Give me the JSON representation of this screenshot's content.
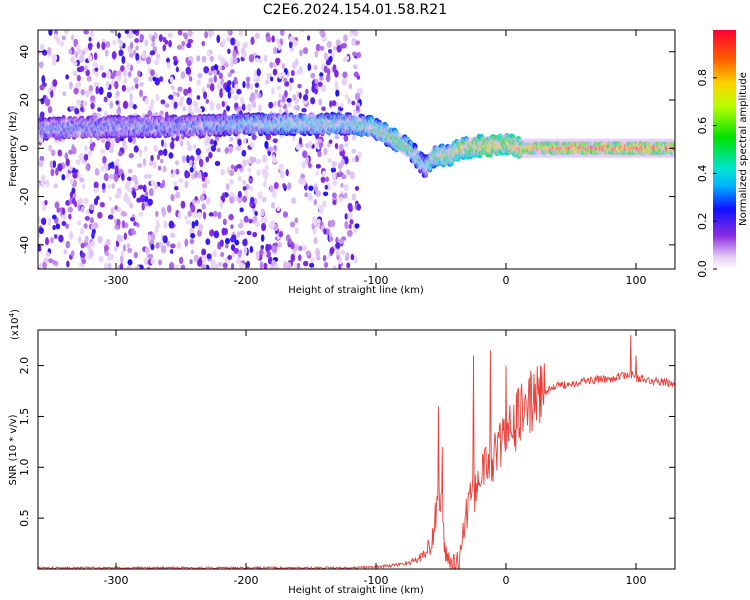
{
  "title": "C2E6.2024.154.01.58.R21",
  "chart_data": [
    {
      "type": "heatmap",
      "name": "spectrogram",
      "xlabel": "Height of straight line (km)",
      "ylabel": "Frequency (Hz)",
      "xlim": [
        -360,
        130
      ],
      "ylim": [
        -50,
        49
      ],
      "xticks": [
        -300,
        -200,
        -100,
        0,
        100
      ],
      "yticks": [
        -40,
        -20,
        0,
        20,
        40
      ],
      "colorbar": {
        "label": "Normalized spectral amplitude",
        "range": [
          0.0,
          1.0
        ],
        "ticks": [
          0.0,
          0.2,
          0.4,
          0.6,
          0.8
        ],
        "tick_labels": [
          "0.0",
          "0.2",
          "0.4",
          "0.6",
          "0.8"
        ]
      },
      "noise_region_x": [
        -360,
        -112
      ],
      "ridge": {
        "x": [
          -360,
          -300,
          -250,
          -200,
          -150,
          -120,
          -105,
          -90,
          -75,
          -62,
          -55,
          -45,
          -35,
          -20,
          -10,
          0,
          10,
          50,
          100,
          130
        ],
        "y": [
          8,
          9,
          9,
          10,
          10,
          10,
          9,
          5,
          0,
          -8,
          -3,
          -3,
          0,
          1,
          1,
          2,
          0,
          0,
          0,
          0
        ],
        "amp": [
          0.3,
          0.3,
          0.3,
          0.4,
          0.45,
          0.45,
          0.5,
          0.55,
          0.55,
          0.4,
          0.6,
          0.6,
          0.7,
          0.75,
          0.8,
          0.65,
          0.8,
          0.95,
          0.95,
          0.9
        ]
      }
    },
    {
      "type": "line",
      "name": "snr",
      "xlabel": "Height of straight line (km)",
      "ylabel": "SNR (10 * v/v)",
      "exponent_label": "(x10",
      "exponent": "4",
      "xlim": [
        -360,
        130
      ],
      "ylim": [
        0,
        2.35
      ],
      "xticks": [
        -300,
        -200,
        -100,
        0,
        100
      ],
      "yticks": [
        0.5,
        1.0,
        1.5,
        2.0
      ],
      "ytick_labels": [
        "0.5",
        "1.0",
        "1.5",
        "2.0"
      ],
      "color": "#e8403a",
      "profile": {
        "x": [
          -360,
          -200,
          -120,
          -100,
          -90,
          -80,
          -70,
          -65,
          -60,
          -57,
          -55,
          -52,
          -50,
          -48,
          -46,
          -44,
          -42,
          -40,
          -38,
          -36,
          -34,
          -32,
          -30,
          -28,
          -26,
          -24,
          -22,
          -20,
          -15,
          -10,
          -5,
          0,
          5,
          10,
          15,
          20,
          25,
          30,
          40,
          60,
          80,
          90,
          95,
          100,
          110,
          120,
          130
        ],
        "y": [
          0.01,
          0.01,
          0.01,
          0.02,
          0.03,
          0.05,
          0.08,
          0.12,
          0.18,
          0.25,
          0.45,
          0.75,
          0.65,
          0.3,
          0.15,
          0.08,
          0.05,
          0.05,
          0.06,
          0.1,
          0.25,
          0.4,
          0.55,
          0.65,
          0.7,
          0.75,
          0.9,
          0.95,
          1.0,
          1.1,
          1.2,
          1.3,
          1.4,
          1.5,
          1.6,
          1.65,
          1.7,
          1.75,
          1.8,
          1.85,
          1.87,
          1.9,
          1.92,
          1.88,
          1.85,
          1.84,
          1.82
        ]
      },
      "spikes": [
        {
          "x": -52,
          "y": 1.6
        },
        {
          "x": -49,
          "y": 1.2
        },
        {
          "x": -25,
          "y": 2.1
        },
        {
          "x": -12,
          "y": 2.15
        },
        {
          "x": 0,
          "y": 2.0
        },
        {
          "x": 96,
          "y": 2.3
        },
        {
          "x": 100,
          "y": 2.1
        }
      ]
    }
  ]
}
